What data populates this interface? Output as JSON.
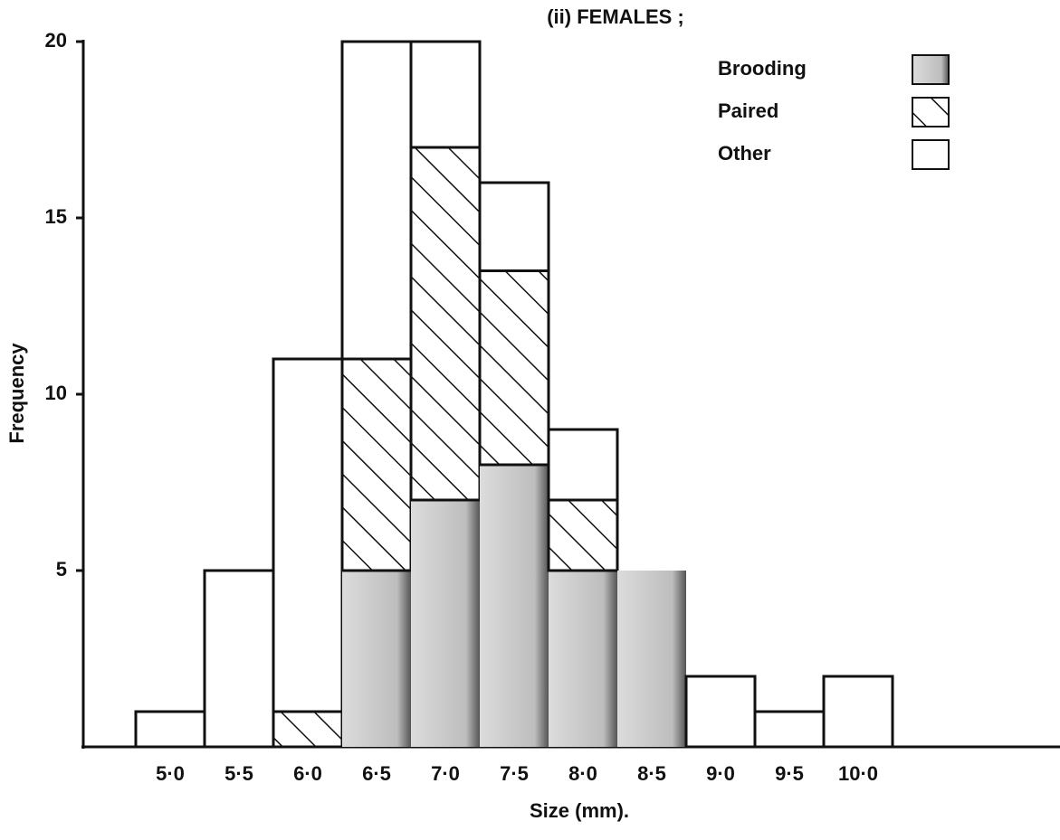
{
  "chart_data": {
    "type": "bar",
    "stacked": true,
    "title": "(ii) FEMALES ;",
    "xlabel": "Size (mm).",
    "ylabel": "Frequency",
    "categories": [
      "5·0",
      "5·5",
      "6·0",
      "6·5",
      "7·0",
      "7·5",
      "8·0",
      "8·5",
      "9·0",
      "9·5",
      "10·0"
    ],
    "series": [
      {
        "name": "Brooding",
        "color": "#c4c4c4",
        "values": [
          0,
          0,
          0,
          5,
          7,
          8,
          5,
          5,
          0,
          0,
          0
        ]
      },
      {
        "name": "Paired",
        "color": "#ffffff",
        "pattern": "hatch",
        "values": [
          0,
          0,
          1,
          6,
          10,
          5.5,
          2,
          0,
          0,
          0,
          0
        ]
      },
      {
        "name": "Other",
        "color": "#ffffff",
        "values": [
          1,
          5,
          10,
          9,
          3,
          2.5,
          2,
          0,
          2,
          1,
          2
        ]
      }
    ],
    "ylim": [
      0,
      20
    ],
    "yticks": [
      5,
      10,
      15,
      20
    ]
  }
}
